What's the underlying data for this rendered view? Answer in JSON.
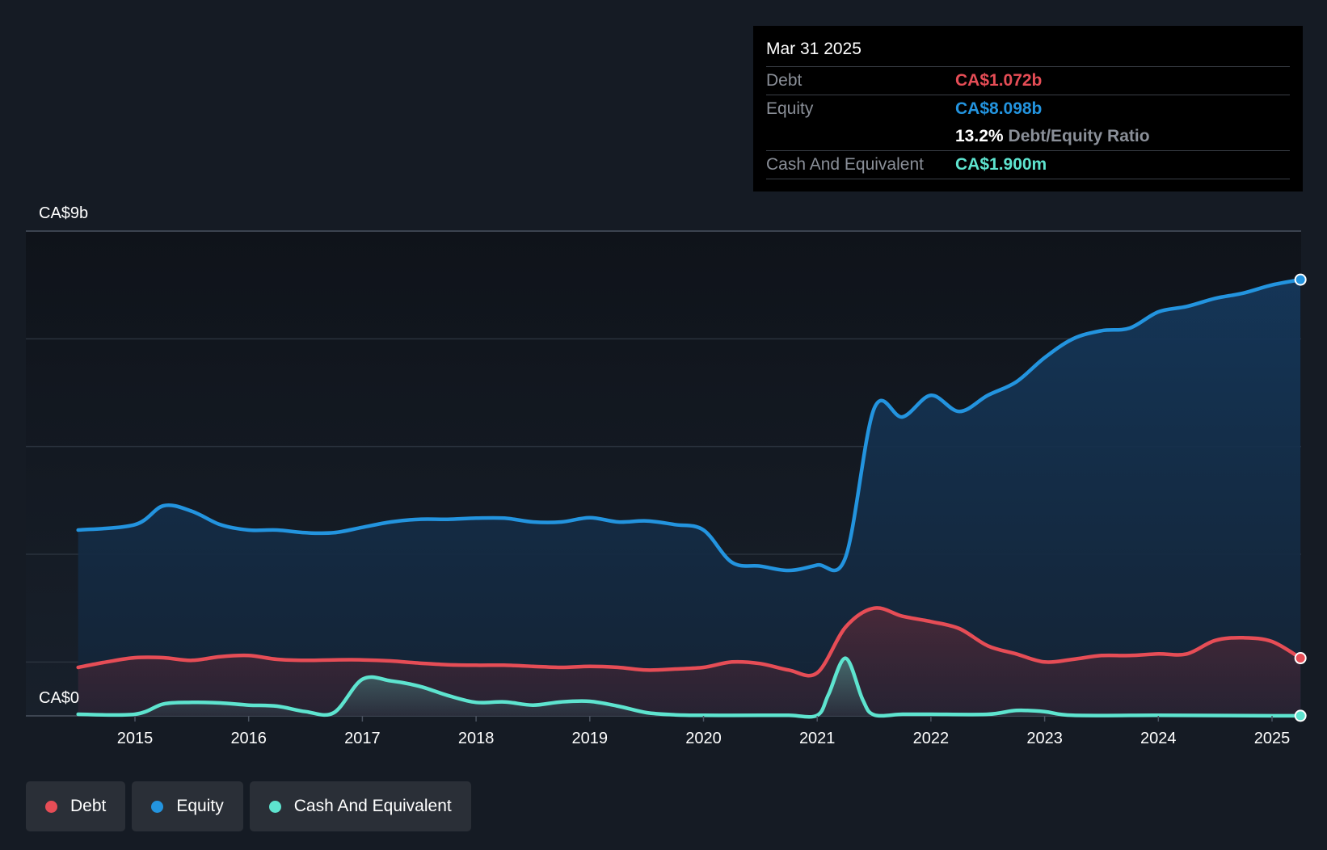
{
  "chart_data": {
    "type": "area",
    "ylabels": {
      "max": "CA$9b",
      "min": "CA$0"
    },
    "ylim": [
      0,
      9
    ],
    "y_unit": "CA$ billions",
    "grid": true,
    "x_ticks": [
      "2015",
      "2016",
      "2017",
      "2018",
      "2019",
      "2020",
      "2021",
      "2022",
      "2023",
      "2024",
      "2025"
    ],
    "legend_position": "bottom-left",
    "series": [
      {
        "name": "Equity",
        "color": "#2394df",
        "x": [
          2014.5,
          2015.0,
          2015.25,
          2015.5,
          2015.75,
          2016.0,
          2016.25,
          2016.5,
          2016.75,
          2017.0,
          2017.25,
          2017.5,
          2017.75,
          2018.0,
          2018.25,
          2018.5,
          2018.75,
          2019.0,
          2019.25,
          2019.5,
          2019.75,
          2020.0,
          2020.25,
          2020.5,
          2020.75,
          2021.0,
          2021.25,
          2021.5,
          2021.75,
          2022.0,
          2022.25,
          2022.5,
          2022.75,
          2023.0,
          2023.25,
          2023.5,
          2023.75,
          2024.0,
          2024.25,
          2024.5,
          2024.75,
          2025.0,
          2025.25
        ],
        "values": [
          3.45,
          3.55,
          3.9,
          3.8,
          3.55,
          3.45,
          3.45,
          3.4,
          3.4,
          3.5,
          3.6,
          3.65,
          3.65,
          3.67,
          3.67,
          3.6,
          3.6,
          3.68,
          3.6,
          3.62,
          3.55,
          3.45,
          2.85,
          2.78,
          2.7,
          2.8,
          2.95,
          5.7,
          5.55,
          5.95,
          5.65,
          5.95,
          6.2,
          6.65,
          7.0,
          7.15,
          7.2,
          7.5,
          7.6,
          7.75,
          7.85,
          8.0,
          8.098
        ]
      },
      {
        "name": "Debt",
        "color": "#e64d56",
        "x": [
          2014.5,
          2014.75,
          2015.0,
          2015.25,
          2015.5,
          2015.75,
          2016.0,
          2016.25,
          2016.5,
          2016.75,
          2017.0,
          2017.25,
          2017.5,
          2017.75,
          2018.0,
          2018.25,
          2018.5,
          2018.75,
          2019.0,
          2019.25,
          2019.5,
          2019.75,
          2020.0,
          2020.25,
          2020.5,
          2020.75,
          2021.0,
          2021.25,
          2021.5,
          2021.75,
          2022.0,
          2022.25,
          2022.5,
          2022.75,
          2023.0,
          2023.25,
          2023.5,
          2023.75,
          2024.0,
          2024.25,
          2024.5,
          2024.75,
          2025.0,
          2025.25
        ],
        "values": [
          0.9,
          1.0,
          1.08,
          1.08,
          1.03,
          1.1,
          1.12,
          1.05,
          1.03,
          1.04,
          1.04,
          1.02,
          0.98,
          0.95,
          0.94,
          0.94,
          0.92,
          0.9,
          0.92,
          0.9,
          0.85,
          0.87,
          0.9,
          1.0,
          0.97,
          0.85,
          0.8,
          1.65,
          2.0,
          1.85,
          1.75,
          1.62,
          1.3,
          1.15,
          1.0,
          1.05,
          1.12,
          1.12,
          1.15,
          1.15,
          1.4,
          1.45,
          1.38,
          1.072
        ]
      },
      {
        "name": "Cash And Equivalent",
        "color": "#5ee4cf",
        "x": [
          2014.5,
          2015.0,
          2015.25,
          2015.5,
          2015.75,
          2016.0,
          2016.25,
          2016.5,
          2016.75,
          2017.0,
          2017.25,
          2017.5,
          2017.75,
          2018.0,
          2018.25,
          2018.5,
          2018.75,
          2019.0,
          2019.25,
          2019.5,
          2019.75,
          2020.0,
          2020.5,
          2020.75,
          2021.0,
          2021.1,
          2021.25,
          2021.4,
          2021.5,
          2021.75,
          2022.0,
          2022.5,
          2022.75,
          2023.0,
          2023.25,
          2024.0,
          2025.0,
          2025.25
        ],
        "values": [
          0.03,
          0.03,
          0.22,
          0.25,
          0.24,
          0.2,
          0.18,
          0.08,
          0.06,
          0.68,
          0.65,
          0.55,
          0.38,
          0.25,
          0.26,
          0.2,
          0.26,
          0.27,
          0.18,
          0.06,
          0.02,
          0.01,
          0.01,
          0.01,
          0.01,
          0.4,
          1.07,
          0.3,
          0.02,
          0.03,
          0.03,
          0.03,
          0.1,
          0.08,
          0.01,
          0.01,
          0.002,
          0.0019
        ]
      }
    ]
  },
  "tooltip": {
    "date": "Mar 31 2025",
    "debt_label": "Debt",
    "debt_value": "CA$1.072b",
    "equity_label": "Equity",
    "equity_value": "CA$8.098b",
    "ratio_value": "13.2%",
    "ratio_label": "Debt/Equity Ratio",
    "cash_label": "Cash And Equivalent",
    "cash_value": "CA$1.900m"
  },
  "legend": {
    "debt": "Debt",
    "equity": "Equity",
    "cash": "Cash And Equivalent"
  },
  "colors": {
    "debt": "#e64d56",
    "equity": "#2394df",
    "cash": "#5ee4cf",
    "background": "#151b24"
  }
}
